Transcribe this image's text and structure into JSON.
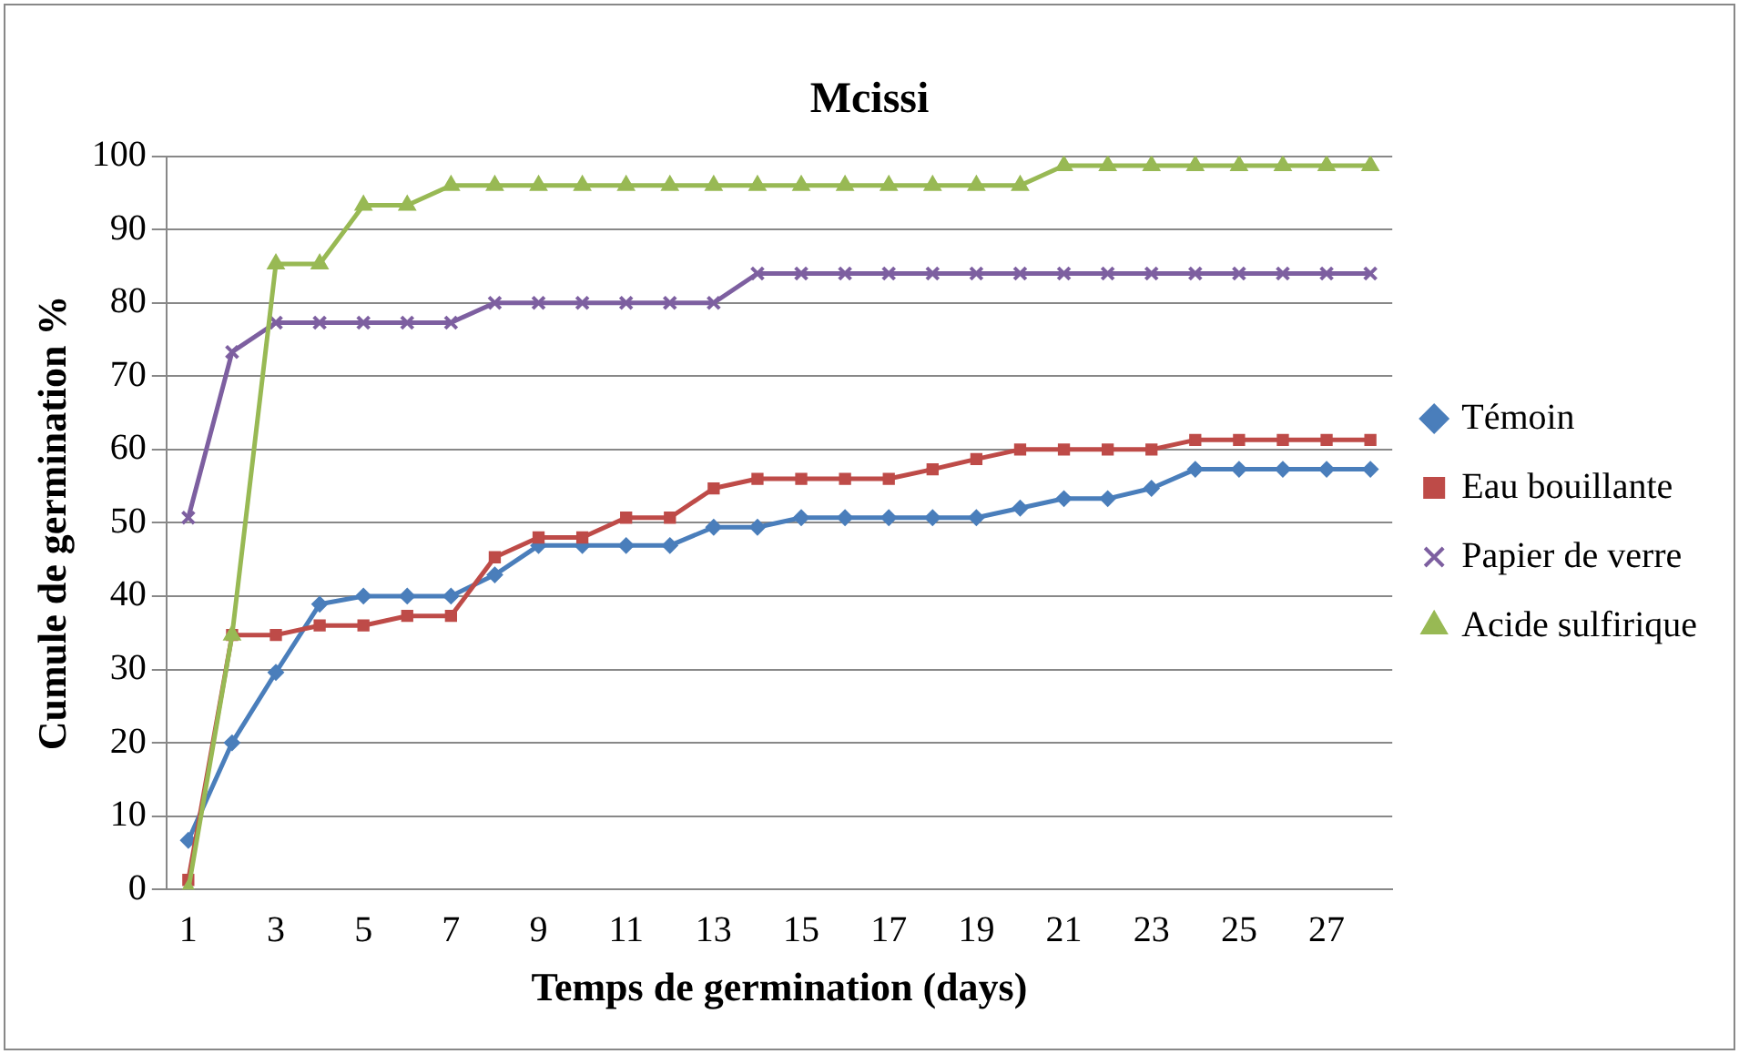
{
  "chart_data": {
    "type": "line",
    "title": "Mcissi",
    "xlabel": "Temps de germination (days)",
    "ylabel": "Cumule de germination %",
    "x": [
      1,
      2,
      3,
      4,
      5,
      6,
      7,
      8,
      9,
      10,
      11,
      12,
      13,
      14,
      15,
      16,
      17,
      18,
      19,
      20,
      21,
      22,
      23,
      24,
      25,
      26,
      27,
      28
    ],
    "xlim": [
      0.5,
      28.5
    ],
    "xticks": [
      1,
      3,
      5,
      7,
      9,
      11,
      13,
      15,
      17,
      19,
      21,
      23,
      25,
      27
    ],
    "ylim": [
      0,
      100
    ],
    "yticks": [
      0,
      10,
      20,
      30,
      40,
      50,
      60,
      70,
      80,
      90,
      100
    ],
    "grid": "y",
    "legend": "right",
    "series": [
      {
        "name": "Témoin",
        "color": "#4a7ebb",
        "marker": "diamond",
        "values": [
          6.7,
          20,
          29.6,
          38.9,
          40,
          40,
          40,
          42.9,
          46.9,
          46.9,
          46.9,
          46.9,
          49.4,
          49.4,
          50.7,
          50.7,
          50.7,
          50.7,
          50.7,
          52,
          53.3,
          53.3,
          54.7,
          57.3,
          57.3,
          57.3,
          57.3,
          57.3
        ]
      },
      {
        "name": "Eau bouillante",
        "color": "#be4b48",
        "marker": "square",
        "values": [
          1.3,
          34.7,
          34.7,
          36,
          36,
          37.3,
          37.3,
          45.3,
          48,
          48,
          50.7,
          50.7,
          54.7,
          56,
          56,
          56,
          56,
          57.3,
          58.7,
          60,
          60,
          60,
          60,
          61.3,
          61.3,
          61.3,
          61.3,
          61.3
        ]
      },
      {
        "name": "Papier de verre",
        "color": "#7d5fa0",
        "marker": "cross",
        "values": [
          50.7,
          73.3,
          77.3,
          77.3,
          77.3,
          77.3,
          77.3,
          80,
          80,
          80,
          80,
          80,
          80,
          84,
          84,
          84,
          84,
          84,
          84,
          84,
          84,
          84,
          84,
          84,
          84,
          84,
          84,
          84
        ]
      },
      {
        "name": "Acide sulfirique",
        "color": "#98b954",
        "marker": "triangle",
        "values": [
          0,
          34.7,
          85.3,
          85.3,
          93.3,
          93.3,
          96,
          96,
          96,
          96,
          96,
          96,
          96,
          96,
          96,
          96,
          96,
          96,
          96,
          96,
          98.7,
          98.7,
          98.7,
          98.7,
          98.7,
          98.7,
          98.7,
          98.7
        ]
      }
    ]
  }
}
